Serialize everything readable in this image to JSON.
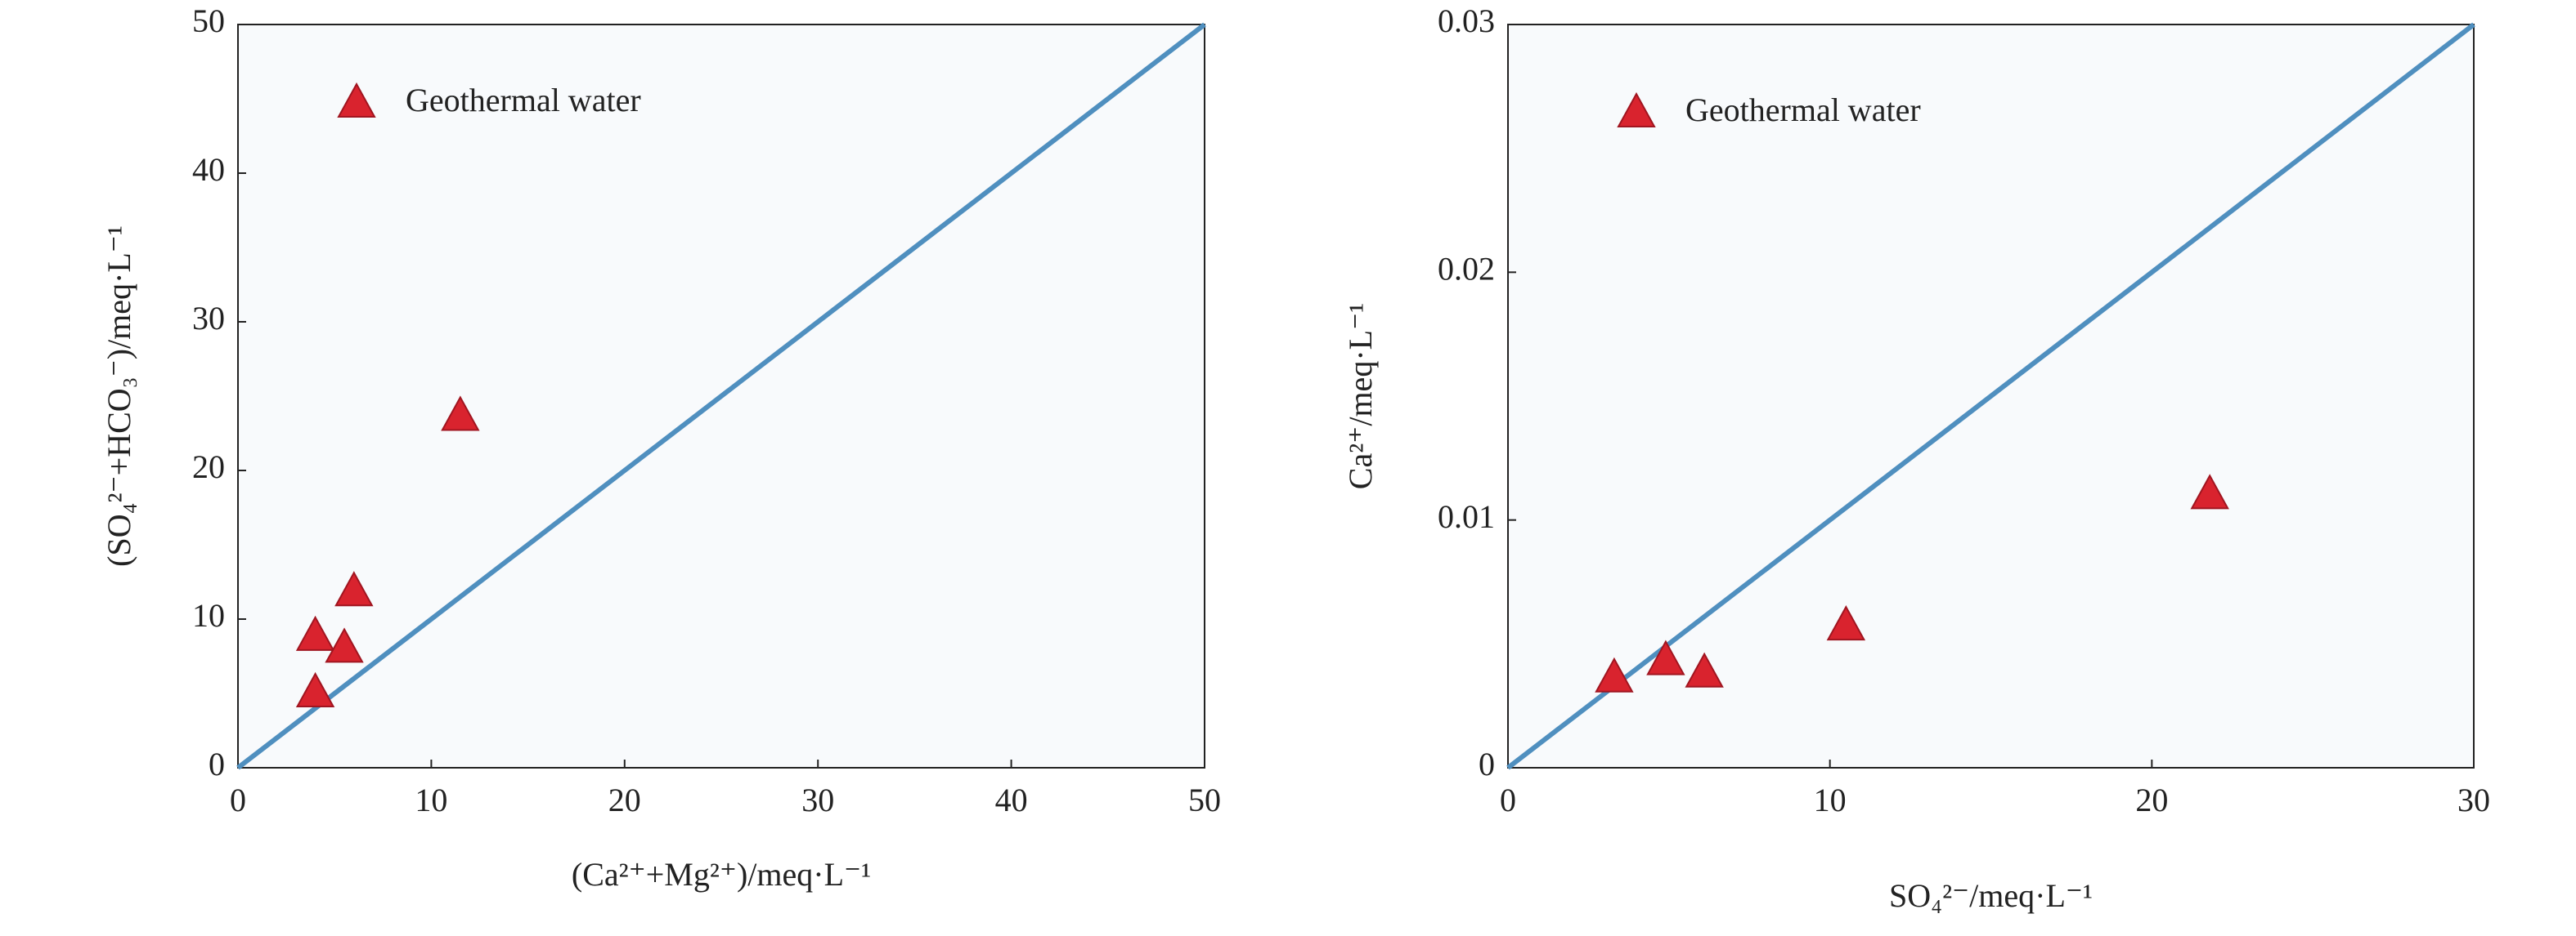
{
  "chart_data": [
    {
      "type": "scatter",
      "x_label": "(Ca²⁺+Mg²⁺)/meq·L⁻¹",
      "y_label": "(SO₄²⁻+HCO₃⁻)/meq·L⁻¹",
      "xlim": [
        0,
        50
      ],
      "ylim": [
        0,
        50
      ],
      "xticks": [
        0,
        10,
        20,
        30,
        40,
        50
      ],
      "yticks": [
        0,
        10,
        20,
        30,
        40,
        50
      ],
      "reference_line": {
        "color": "#4f8fbf",
        "x": [
          0,
          50
        ],
        "y": [
          0,
          50
        ]
      },
      "series": [
        {
          "name": "Geothermal water",
          "color": "#d9232e",
          "x": [
            4,
            4,
            5.5,
            6,
            11.5
          ],
          "y": [
            5,
            8.8,
            8,
            11.8,
            23.6
          ]
        }
      ]
    },
    {
      "type": "scatter",
      "x_label": "SO₄²⁻/meq·L⁻¹",
      "y_label": "Ca²⁺/meq·L⁻¹",
      "xlim": [
        0,
        30
      ],
      "ylim": [
        0,
        0.03
      ],
      "xticks": [
        0,
        10,
        20,
        30
      ],
      "yticks": [
        0,
        0.01,
        0.02,
        0.03
      ],
      "reference_line": {
        "color": "#4f8fbf",
        "x": [
          0,
          30
        ],
        "y": [
          0,
          0.03
        ]
      },
      "series": [
        {
          "name": "Geothermal water",
          "color": "#d9232e",
          "x": [
            3.3,
            4.9,
            6.1,
            10.5,
            21.8
          ],
          "y": [
            0.0036,
            0.0043,
            0.0038,
            0.0057,
            0.011
          ]
        }
      ]
    }
  ]
}
